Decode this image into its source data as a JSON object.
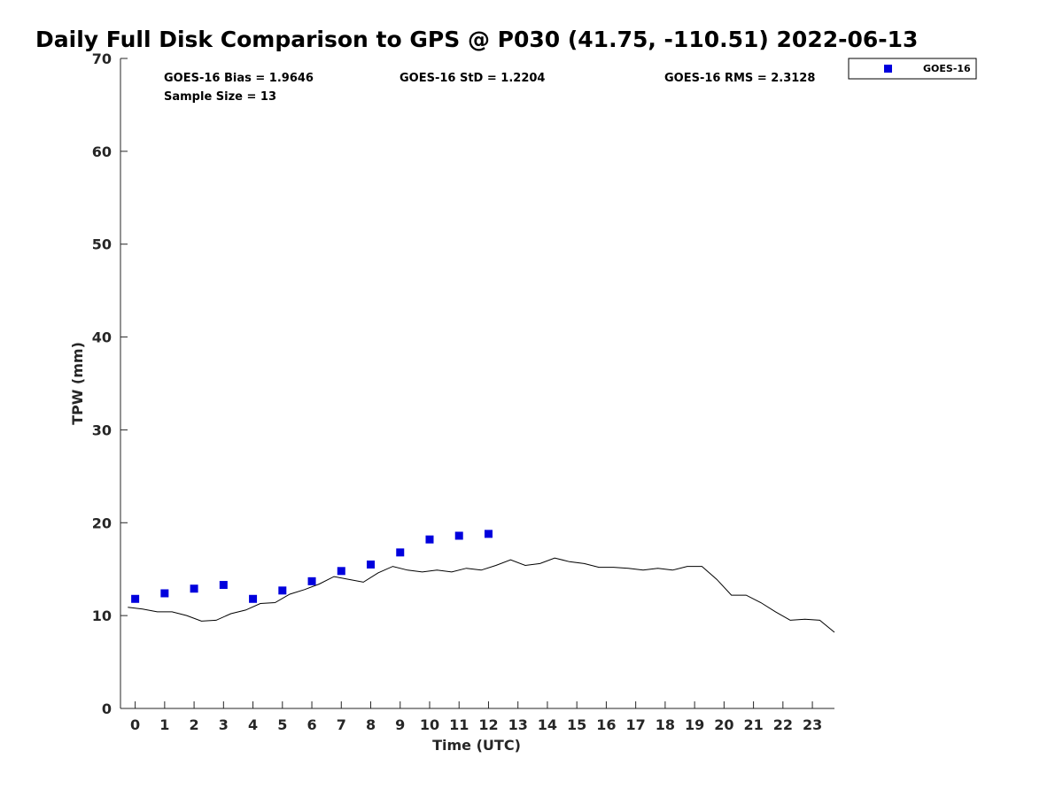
{
  "chart_data": {
    "type": "scatter",
    "title": "Daily Full Disk Comparison to GPS @ P030 (41.75, -110.51) 2022-06-13",
    "xlabel": "Time (UTC)",
    "ylabel": "TPW (mm)",
    "xlim": [
      -0.5,
      23.75
    ],
    "ylim": [
      0,
      70
    ],
    "xticks": [
      "0",
      "1",
      "2",
      "3",
      "4",
      "5",
      "6",
      "7",
      "8",
      "9",
      "10",
      "11",
      "12",
      "13",
      "14",
      "15",
      "16",
      "17",
      "18",
      "19",
      "20",
      "21",
      "22",
      "23"
    ],
    "yticks": [
      "0",
      "10",
      "20",
      "30",
      "40",
      "50",
      "60",
      "70"
    ],
    "grid": false,
    "legend_position": "top-right, outside plot",
    "stats": {
      "bias": "GOES-16 Bias = 1.9646",
      "std": "GOES-16 StD = 1.2204",
      "rms": "GOES-16 RMS = 2.3128",
      "sample": "Sample Size = 13"
    },
    "series": [
      {
        "name": "GOES-16",
        "kind": "markers",
        "marker": "square",
        "color": "#0000dd",
        "x": [
          0,
          1,
          2,
          3,
          4,
          5,
          6,
          7,
          8,
          9,
          10,
          11,
          12
        ],
        "y": [
          11.8,
          12.4,
          12.9,
          13.3,
          11.8,
          12.7,
          13.7,
          14.8,
          15.5,
          16.8,
          18.2,
          18.6,
          18.8
        ]
      },
      {
        "kind": "line",
        "color": "#000000",
        "x": [
          -0.25,
          0.25,
          0.75,
          1.25,
          1.75,
          2.25,
          2.75,
          3.25,
          3.75,
          4.25,
          4.75,
          5.25,
          5.75,
          6.25,
          6.75,
          7.25,
          7.75,
          8.25,
          8.75,
          9.25,
          9.75,
          10.25,
          10.75,
          11.25,
          11.75,
          12.25,
          12.75,
          13.25,
          13.75,
          14.25,
          14.75,
          15.25,
          15.75,
          16.25,
          16.75,
          17.25,
          17.75,
          18.25,
          18.75,
          19.25,
          19.75,
          20.25,
          20.75,
          21.25,
          21.75,
          22.25,
          22.75,
          23.25,
          23.75
        ],
        "y": [
          10.9,
          10.7,
          10.4,
          10.4,
          10.0,
          9.4,
          9.5,
          10.2,
          10.6,
          11.3,
          11.4,
          12.3,
          12.8,
          13.4,
          14.2,
          13.9,
          13.6,
          14.6,
          15.3,
          14.9,
          14.7,
          14.9,
          14.7,
          15.1,
          14.9,
          15.4,
          16.0,
          15.4,
          15.6,
          16.2,
          15.8,
          15.6,
          15.2,
          15.2,
          15.1,
          14.9,
          15.1,
          14.9,
          15.3,
          15.3,
          13.9,
          12.2,
          12.2,
          11.4,
          10.4,
          9.5,
          9.6,
          9.5,
          8.2
        ]
      }
    ]
  }
}
